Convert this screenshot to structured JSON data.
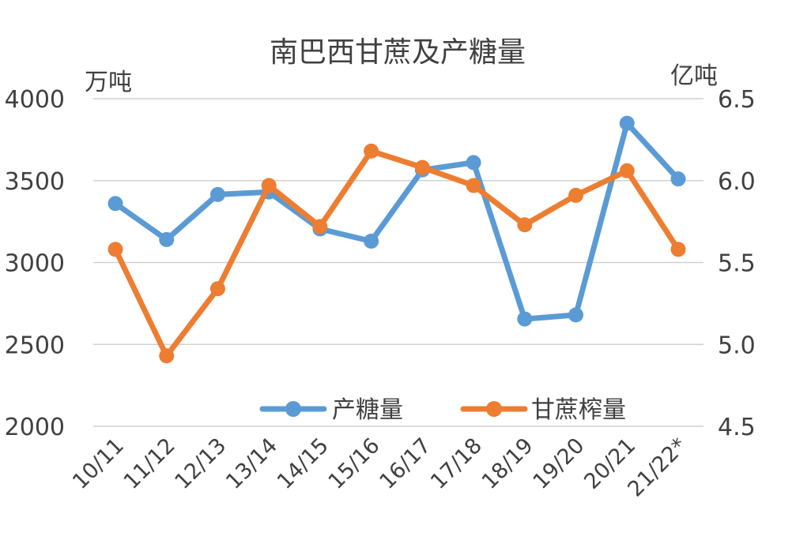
{
  "chart_data": {
    "type": "line",
    "title": "南巴西甘蔗及产糖量",
    "categories": [
      "10/11",
      "11/12",
      "12/13",
      "13/14",
      "14/15",
      "15/16",
      "16/17",
      "17/18",
      "18/19",
      "19/20",
      "20/21",
      "21/22*"
    ],
    "y_left": {
      "unit": "万吨",
      "ylim": [
        2000,
        4000
      ],
      "ticks": [
        4000,
        3500,
        3000,
        2500,
        2000
      ]
    },
    "y_right": {
      "unit": "亿吨",
      "ylim": [
        4.5,
        6.5
      ],
      "ticks": [
        "6.5",
        "6.0",
        "5.5",
        "5.0",
        "4.5"
      ]
    },
    "grid": true,
    "legend": {
      "placement": "bottom-center",
      "entries": [
        "产糖量",
        "甘蔗榨量"
      ]
    },
    "series": [
      {
        "name": "产糖量",
        "axis": "left",
        "color": "#5B9BD5",
        "values": [
          3360,
          3140,
          3415,
          3430,
          3205,
          3130,
          3565,
          3610,
          2655,
          2680,
          3850,
          3510
        ]
      },
      {
        "name": "甘蔗榨量",
        "axis": "right",
        "color": "#ED7D31",
        "values": [
          5.58,
          4.93,
          5.34,
          5.97,
          5.72,
          6.18,
          6.08,
          5.97,
          5.73,
          5.91,
          6.06,
          5.58
        ]
      }
    ]
  }
}
